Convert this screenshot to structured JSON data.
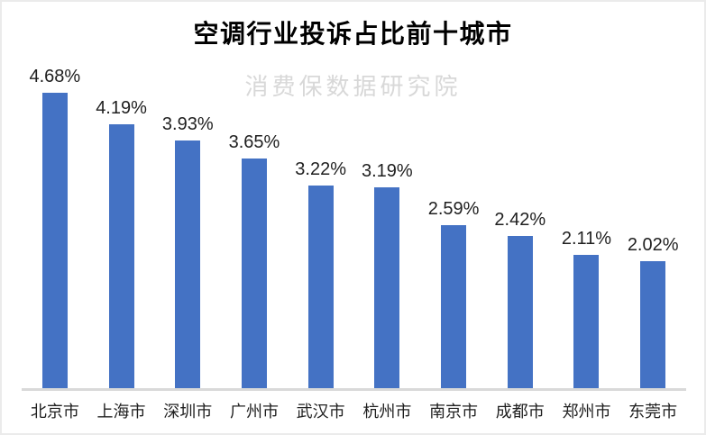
{
  "page": {
    "title": "空调行业投诉占比前十城市",
    "watermark": "消费保数据研究院"
  },
  "chart_data": {
    "type": "bar",
    "title": "空调行业投诉占比前十城市",
    "watermark": "消费保数据研究院",
    "categories": [
      "北京市",
      "上海市",
      "深圳市",
      "广州市",
      "武汉市",
      "杭州市",
      "南京市",
      "成都市",
      "郑州市",
      "东莞市"
    ],
    "values": [
      4.68,
      4.19,
      3.93,
      3.65,
      3.22,
      3.19,
      2.59,
      2.42,
      2.11,
      2.02
    ],
    "value_labels": [
      "4.68%",
      "4.19%",
      "3.93%",
      "3.65%",
      "3.22%",
      "3.19%",
      "2.59%",
      "2.42%",
      "2.11%",
      "2.02%"
    ],
    "unit": "%",
    "xlabel": "",
    "ylabel": "",
    "ylim": [
      0,
      5
    ],
    "grid": false,
    "legend": false,
    "data_labels_shown": true,
    "bar_color": "#4472C4",
    "axis_color": "#D9D9D9",
    "watermark_color": "#D8D8D8"
  }
}
